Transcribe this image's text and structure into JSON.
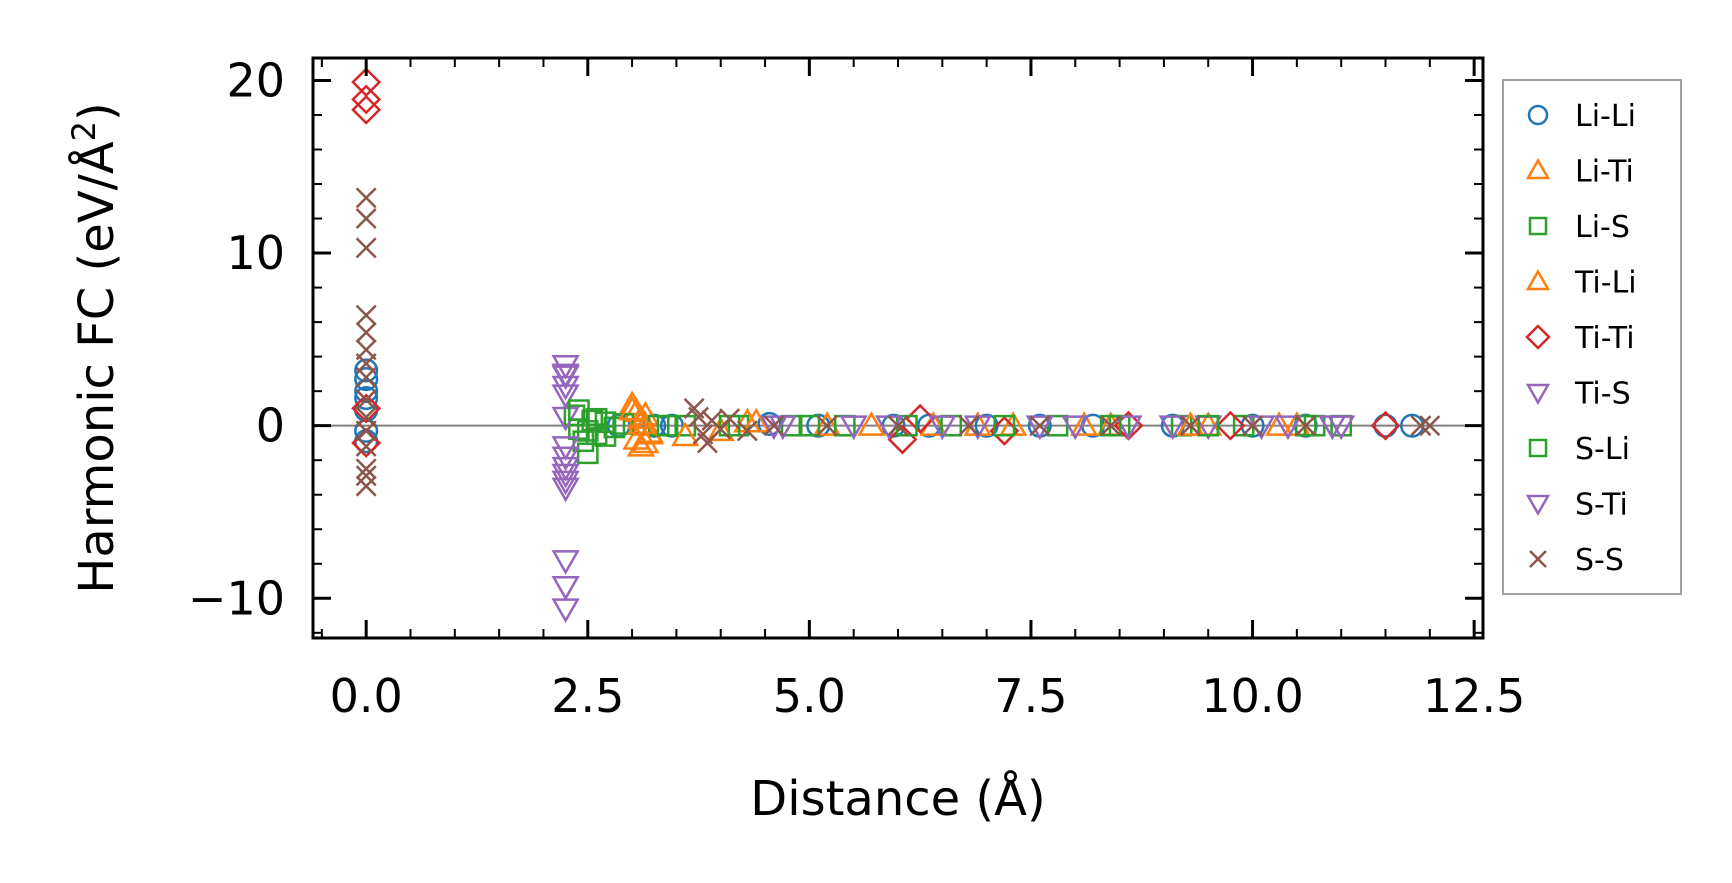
{
  "chart_data": {
    "type": "scatter",
    "title": "",
    "xlabel": "Distance (Å)",
    "ylabel_main": "Harmonic FC (eV/Å",
    "ylabel_sup": "2",
    "ylabel_close": ")",
    "xlim": [
      -0.6,
      12.6
    ],
    "ylim": [
      -12.3,
      21.3
    ],
    "xticks": [
      0.0,
      2.5,
      5.0,
      7.5,
      10.0,
      12.5
    ],
    "xtick_labels": [
      "0.0",
      "2.5",
      "5.0",
      "7.5",
      "10.0",
      "12.5"
    ],
    "yticks": [
      -10,
      0,
      10,
      20
    ],
    "ytick_labels": [
      "−10",
      "0",
      "10",
      "20"
    ],
    "zero_line": true,
    "grid": false,
    "legend_position": "outside-right",
    "series": [
      {
        "name": "Li-Li",
        "marker": "circle",
        "color": "#1f77b4",
        "x": [
          0,
          0,
          0,
          0,
          0,
          0,
          0,
          2.85,
          3.25,
          3.45,
          4.55,
          5.1,
          5.95,
          6.35,
          7.0,
          7.6,
          8.2,
          9.1,
          10.0,
          10.6,
          11.5,
          11.8
        ],
        "y": [
          3.2,
          2.7,
          2.0,
          1.6,
          0.9,
          -0.3,
          -0.9,
          0.0,
          0.0,
          0.0,
          0.1,
          0.0,
          0.0,
          0.0,
          0.0,
          0.0,
          0.0,
          0.0,
          0.0,
          0.0,
          0.0,
          0.0
        ]
      },
      {
        "name": "Li-Ti",
        "marker": "triangle-up",
        "color": "#ff7f0e",
        "x": [
          3.0,
          3.05,
          3.1,
          3.15,
          3.2,
          3.05,
          3.1,
          3.15,
          4.0,
          4.3,
          5.2,
          6.4,
          7.3,
          8.4,
          9.5,
          10.5
        ],
        "y": [
          1.2,
          0.8,
          0.4,
          0.0,
          -0.4,
          -0.8,
          -1.2,
          0.6,
          -0.3,
          0.2,
          0.0,
          0.0,
          0.0,
          0.0,
          0.0,
          0.0
        ]
      },
      {
        "name": "Li-S",
        "marker": "square",
        "color": "#2ca02c",
        "x": [
          2.35,
          2.4,
          2.45,
          2.5,
          2.55,
          2.6,
          2.7,
          2.8,
          2.9,
          3.3,
          3.6,
          4.2,
          4.8,
          5.4,
          6.6,
          7.8,
          8.5,
          9.2,
          9.9,
          10.6,
          11.0
        ],
        "y": [
          0.6,
          -0.2,
          -0.9,
          -1.6,
          0.3,
          -0.5,
          0.2,
          -0.1,
          0.1,
          0.0,
          0.0,
          0.0,
          0.0,
          0.0,
          0.0,
          0.0,
          0.0,
          0.0,
          0.0,
          0.0,
          0.0
        ]
      },
      {
        "name": "Ti-Li",
        "marker": "triangle-up",
        "color": "#ff7f0e",
        "x": [
          3.0,
          3.1,
          3.2,
          3.15,
          3.6,
          4.4,
          5.7,
          6.9,
          8.1,
          9.3,
          10.3
        ],
        "y": [
          0.9,
          0.1,
          -0.5,
          -1.0,
          -0.6,
          0.2,
          0.0,
          0.0,
          0.0,
          0.0,
          0.0
        ]
      },
      {
        "name": "Ti-Ti",
        "marker": "diamond",
        "color": "#d62728",
        "x": [
          0,
          0,
          0,
          0,
          0,
          6.05,
          6.25,
          7.2,
          8.6,
          9.75,
          11.5
        ],
        "y": [
          19.9,
          18.9,
          18.3,
          1.0,
          -1.0,
          -0.8,
          0.4,
          -0.3,
          0.0,
          0.0,
          0.0
        ]
      },
      {
        "name": "Ti-S",
        "marker": "triangle-down",
        "color": "#9467bd",
        "x": [
          2.25,
          2.25,
          2.25,
          2.25,
          2.25,
          2.25,
          2.25,
          2.25,
          2.25,
          2.25,
          4.6,
          5.5,
          6.5,
          7.6,
          8.6,
          9.5,
          10.4,
          11.0
        ],
        "y": [
          3.5,
          2.9,
          1.8,
          0.5,
          -1.8,
          -2.4,
          -3.2,
          -7.8,
          -9.3,
          -10.6,
          0.0,
          0.0,
          0.0,
          0.0,
          0.0,
          0.0,
          0.0,
          0.0
        ]
      },
      {
        "name": "S-Li",
        "marker": "square",
        "color": "#2ca02c",
        "x": [
          2.4,
          2.5,
          2.6,
          2.7,
          3.4,
          4.1,
          5.0,
          6.1,
          7.2,
          8.4,
          9.5,
          10.7
        ],
        "y": [
          0.9,
          -0.3,
          0.4,
          -0.6,
          0.0,
          0.0,
          0.0,
          0.0,
          0.0,
          0.0,
          0.0,
          0.0
        ]
      },
      {
        "name": "S-Ti",
        "marker": "triangle-down",
        "color": "#9467bd",
        "x": [
          2.25,
          2.25,
          2.25,
          2.25,
          2.25,
          4.7,
          5.9,
          6.9,
          8.0,
          9.1,
          10.1,
          10.9
        ],
        "y": [
          3.0,
          2.3,
          -1.2,
          -2.8,
          -3.6,
          0.0,
          0.0,
          0.0,
          0.0,
          0.0,
          0.0,
          0.0
        ]
      },
      {
        "name": "S-S",
        "marker": "x",
        "color": "#8c564b",
        "x": [
          0,
          0,
          0,
          0,
          0,
          0,
          0,
          0,
          0,
          0,
          0,
          0,
          0,
          0,
          0,
          3.7,
          3.75,
          3.8,
          3.85,
          3.9,
          4.0,
          4.1,
          4.3,
          4.6,
          5.2,
          6.0,
          6.8,
          7.6,
          8.4,
          9.3,
          10.0,
          10.6,
          11.9,
          12.0
        ],
        "y": [
          13.2,
          12.0,
          10.3,
          6.4,
          5.4,
          4.4,
          3.6,
          2.8,
          1.5,
          0.5,
          -0.3,
          -1.2,
          -2.5,
          -2.9,
          -3.5,
          1.0,
          0.5,
          -0.5,
          -1.0,
          0.3,
          -0.2,
          0.4,
          -0.3,
          0.0,
          0.0,
          0.0,
          0.0,
          0.0,
          0.0,
          0.0,
          0.0,
          0.0,
          0.0,
          0.0
        ]
      }
    ]
  }
}
